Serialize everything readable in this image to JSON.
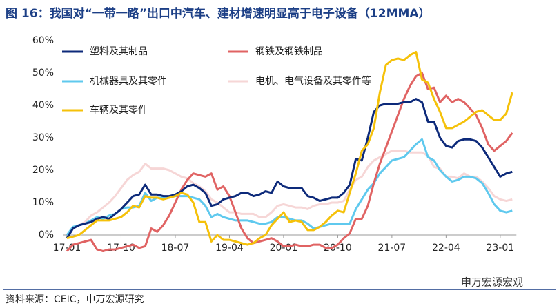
{
  "chart_data": {
    "type": "line",
    "title": "图 16：我国对“一带一路”出口中汽车、建材增速明显高于电子设备（12MMA）",
    "source": "资料来源：CEIC，申万宏源研究",
    "watermark": "申万宏源宏观",
    "categories": [
      "17-01",
      null,
      null,
      null,
      null,
      null,
      null,
      null,
      null,
      "17-10",
      null,
      null,
      null,
      null,
      null,
      null,
      null,
      null,
      "18-07",
      null,
      null,
      null,
      null,
      null,
      null,
      null,
      null,
      "19-04",
      null,
      null,
      null,
      null,
      null,
      null,
      null,
      null,
      "20-01",
      null,
      null,
      null,
      null,
      null,
      null,
      null,
      null,
      "20-10",
      null,
      null,
      null,
      null,
      null,
      null,
      null,
      null,
      "21-07",
      null,
      null,
      null,
      null,
      null,
      null,
      null,
      null,
      "22-04",
      null,
      null,
      null,
      null,
      null,
      null,
      null,
      null,
      "23-01",
      null,
      null
    ],
    "ylim": [
      0,
      60
    ],
    "yticks": [
      {
        "value": 0,
        "label": "0%"
      },
      {
        "value": 10,
        "label": "10%"
      },
      {
        "value": 20,
        "label": "20%"
      },
      {
        "value": 30,
        "label": "30%"
      },
      {
        "value": 40,
        "label": "40%"
      },
      {
        "value": 50,
        "label": "50%"
      },
      {
        "value": 60,
        "label": "60%"
      }
    ],
    "series": [
      {
        "name": "塑料及其制品",
        "color": "#0d2a7a",
        "values": [
          -1,
          2,
          3,
          3.5,
          4,
          5,
          5.5,
          5,
          6.5,
          8,
          10,
          12,
          12.5,
          15.5,
          12.5,
          12.5,
          12,
          12,
          12.5,
          13.5,
          15,
          15.5,
          14.5,
          13,
          9,
          9.5,
          11,
          11.5,
          12,
          13,
          13,
          12,
          12.5,
          13.5,
          13,
          16.5,
          15,
          14.5,
          14.5,
          14.5,
          12,
          11.5,
          10.5,
          11,
          11.5,
          11.5,
          13,
          15.5,
          23.5,
          23,
          30,
          38,
          40,
          40.5,
          40.5,
          40.5,
          41,
          41,
          42,
          41,
          35,
          35,
          30,
          27.5,
          27,
          29,
          29.5,
          29.5,
          29,
          27,
          24,
          21,
          18,
          19,
          19.5
        ]
      },
      {
        "name": "钢铁及钢铁制品",
        "color": "#e06363",
        "values": [
          -5,
          -3,
          -2.5,
          -2,
          -1.5,
          -4.5,
          -5,
          -4.5,
          -4.5,
          -4,
          -3.5,
          -3,
          -4,
          -3.5,
          2,
          1,
          3,
          6,
          10,
          14,
          17,
          19,
          18.5,
          18,
          19,
          14,
          15,
          12,
          7,
          2,
          -1,
          -2.5,
          -2,
          -1.5,
          -1,
          -2,
          -3.5,
          -3.5,
          -3,
          -3.5,
          -3.5,
          -3,
          -3,
          -4,
          -4,
          -3,
          -1,
          0.5,
          5,
          5,
          9,
          16,
          22,
          27,
          32,
          37,
          42,
          46,
          49,
          50,
          45,
          45.5,
          41,
          43,
          41,
          42,
          41,
          39,
          37,
          33,
          28,
          26,
          27.5,
          29,
          31.5
        ]
      },
      {
        "name": "机械器具及其零件",
        "color": "#5fc9ee",
        "values": [
          0,
          2.5,
          3,
          3.5,
          4.5,
          5.5,
          5,
          6,
          6.5,
          8,
          8.5,
          8.5,
          9,
          13,
          10.5,
          11.5,
          11.5,
          11.5,
          12,
          12,
          12,
          11.5,
          11,
          9,
          5.5,
          6.5,
          5.5,
          5,
          4.5,
          4.5,
          4.5,
          4,
          3.5,
          3.5,
          4,
          5.5,
          5.5,
          5,
          4.5,
          4.5,
          3.5,
          2,
          2.5,
          3,
          3.5,
          3.5,
          3.5,
          3.5,
          8,
          11,
          14,
          16,
          19,
          21,
          23,
          23.5,
          24,
          26,
          28,
          29.5,
          24,
          23,
          20,
          18,
          16.5,
          17,
          18,
          18,
          17.5,
          16,
          13,
          9.5,
          7.5,
          7,
          7.5
        ]
      },
      {
        "name": "电机、电气设备及其零件等",
        "color": "#f6d6d6",
        "values": [
          0,
          2,
          3,
          4,
          6,
          7,
          8.5,
          10,
          12,
          14.5,
          17,
          18.5,
          19.5,
          22,
          20.5,
          20.5,
          20.5,
          20,
          19,
          18,
          17.5,
          16,
          15,
          13.5,
          11,
          10,
          8.5,
          7,
          7,
          6.5,
          6.5,
          6.5,
          5.5,
          5.5,
          7,
          9,
          9.5,
          9,
          8.5,
          8.5,
          8,
          9,
          9.5,
          9.5,
          10,
          10,
          10.5,
          14,
          17,
          18,
          21,
          23,
          24,
          25,
          26,
          26,
          26,
          25.5,
          25.5,
          25.5,
          24.5,
          21,
          20.5,
          18,
          18,
          17.5,
          19,
          18,
          18,
          16.5,
          14.5,
          12,
          11,
          10.5,
          11
        ]
      },
      {
        "name": "车辆及其零件",
        "color": "#f5c10a",
        "values": [
          -1,
          -0.5,
          0,
          1.5,
          3,
          4.5,
          4.5,
          4.5,
          5,
          5.5,
          7,
          9,
          8.5,
          12,
          11.5,
          11.5,
          11,
          11.5,
          12,
          13,
          12.5,
          10,
          4,
          4,
          -2,
          0,
          -1.5,
          -1.5,
          -2,
          -2.5,
          -3,
          -2.5,
          -1,
          0,
          3,
          5,
          7,
          4,
          4.5,
          4,
          1.5,
          1.5,
          2.5,
          4,
          6,
          7.5,
          7,
          13,
          19,
          26,
          28,
          33,
          44,
          52.5,
          54,
          54.5,
          54,
          55.5,
          56.5,
          48,
          47,
          42,
          38,
          33,
          33,
          34,
          35,
          36.5,
          38,
          38.5,
          37,
          35.5,
          35.5,
          37.5,
          44
        ]
      }
    ]
  }
}
